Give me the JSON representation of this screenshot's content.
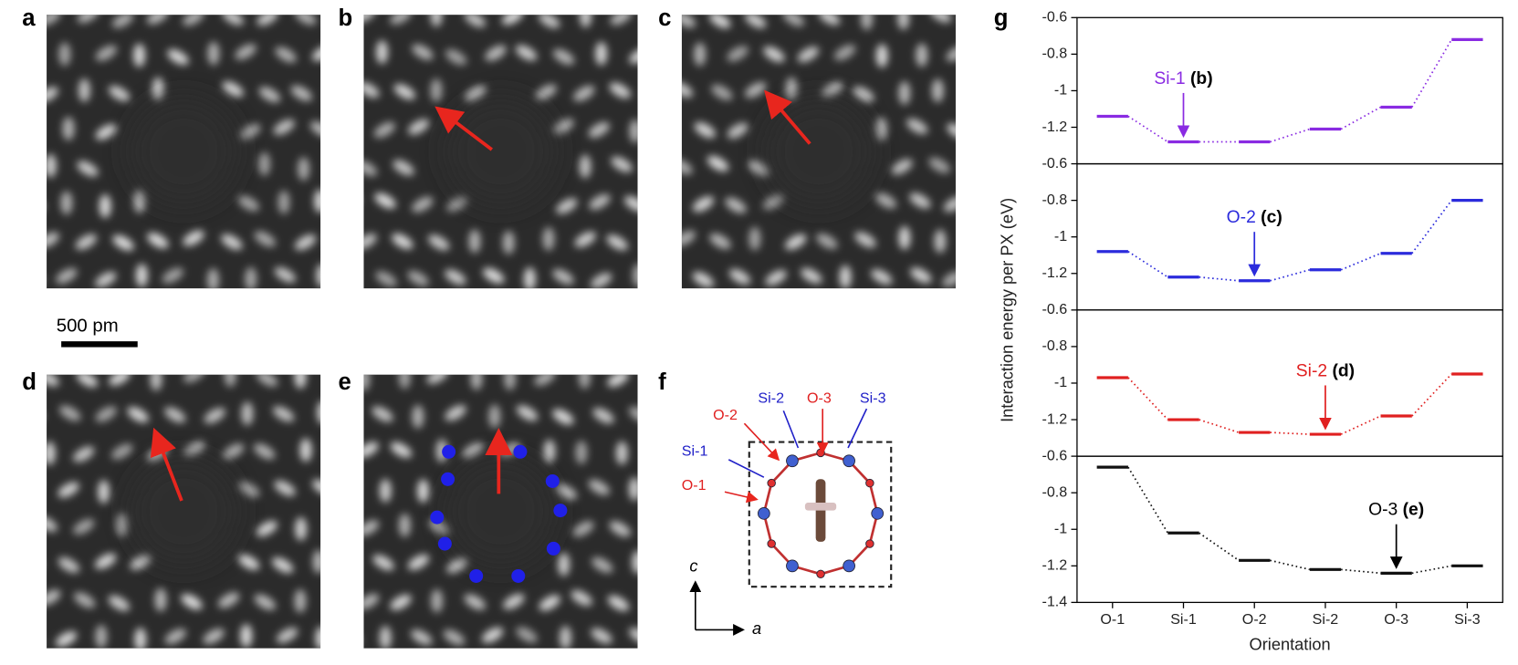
{
  "figure": {
    "panel_labels": [
      "a",
      "b",
      "c",
      "d",
      "e",
      "f",
      "g"
    ],
    "scale_bar": "500 pm",
    "structure_labels": {
      "o2": "O-2",
      "si2": "Si-2",
      "o3": "O-3",
      "si3": "Si-3",
      "si1": "Si-1",
      "o1": "O-1",
      "axis_c": "c",
      "axis_a": "a"
    }
  },
  "chart_data": {
    "type": "level",
    "ylabel": "Interaction energy per PX (eV)",
    "xlabel": "Orientation",
    "categories": [
      "O-1",
      "Si-1",
      "O-2",
      "Si-2",
      "O-3",
      "Si-3"
    ],
    "series": [
      {
        "color": "#8a2be2",
        "values": [
          -1.14,
          -1.28,
          -1.28,
          -1.21,
          -1.09,
          -0.72
        ],
        "ylim": [
          -1.4,
          -0.6
        ],
        "yticks": [
          -0.6,
          -0.8,
          -1.0,
          -1.2
        ],
        "annotation": {
          "label": "Si-1",
          "ref": "(b)"
        }
      },
      {
        "color": "#2b2bdc",
        "values": [
          -1.08,
          -1.22,
          -1.24,
          -1.18,
          -1.09,
          -0.8
        ],
        "ylim": [
          -1.4,
          -0.6
        ],
        "yticks": [
          -0.6,
          -0.8,
          -1.0,
          -1.2
        ],
        "annotation": {
          "label": "O-2",
          "ref": "(c)"
        }
      },
      {
        "color": "#e02020",
        "values": [
          -0.97,
          -1.2,
          -1.27,
          -1.28,
          -1.18,
          -0.95
        ],
        "ylim": [
          -1.4,
          -0.6
        ],
        "yticks": [
          -0.6,
          -0.8,
          -1.0,
          -1.2
        ],
        "annotation": {
          "label": "Si-2",
          "ref": "(d)"
        }
      },
      {
        "color": "#111111",
        "values": [
          -0.66,
          -1.02,
          -1.17,
          -1.22,
          -1.24,
          -1.2
        ],
        "ylim": [
          -1.4,
          -0.6
        ],
        "yticks": [
          -0.6,
          -0.8,
          -1.0,
          -1.2,
          -1.4
        ],
        "annotation": {
          "label": "O-3",
          "ref": "(e)"
        }
      }
    ]
  }
}
